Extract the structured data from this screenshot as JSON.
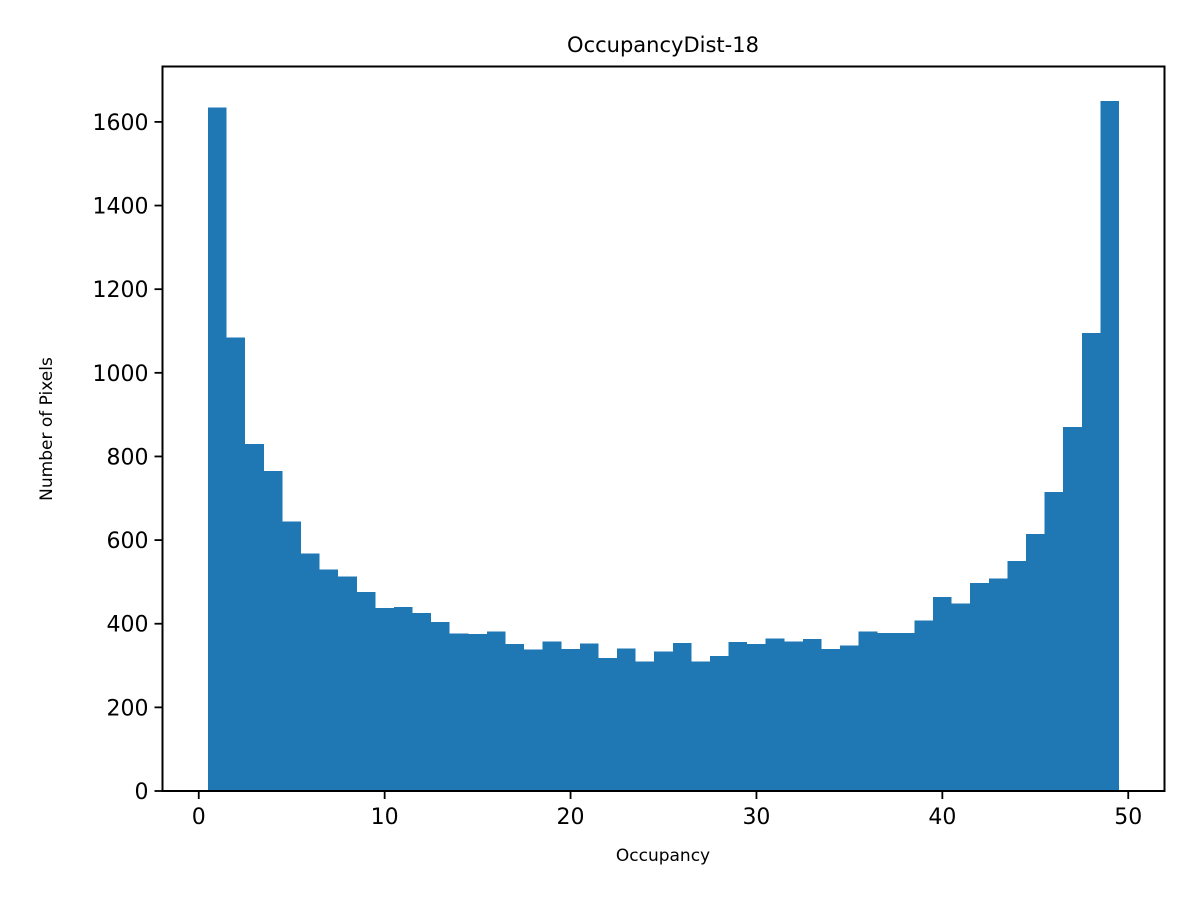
{
  "figure": {
    "background": "#ffffff",
    "text_color": "#000000"
  },
  "chart_data": {
    "type": "bar",
    "subtype": "histogram",
    "title": "OccupancyDist-18",
    "xlabel": "Occupancy",
    "ylabel": "Number of Pixels",
    "bin_start": 0.5,
    "bin_width": 1,
    "bin_centers": [
      1,
      2,
      3,
      4,
      5,
      6,
      7,
      8,
      9,
      10,
      11,
      12,
      13,
      14,
      15,
      16,
      17,
      18,
      19,
      20,
      21,
      22,
      23,
      24,
      25,
      26,
      27,
      28,
      29,
      30,
      31,
      32,
      33,
      34,
      35,
      36,
      37,
      38,
      39,
      40,
      41,
      42,
      43,
      44,
      45,
      46,
      47,
      48,
      49
    ],
    "values": [
      1635,
      1085,
      830,
      765,
      645,
      568,
      530,
      513,
      476,
      438,
      440,
      426,
      404,
      377,
      376,
      382,
      351,
      338,
      357,
      339,
      353,
      318,
      341,
      310,
      334,
      354,
      310,
      323,
      356,
      351,
      365,
      358,
      364,
      340,
      348,
      382,
      378,
      378,
      408,
      464,
      448,
      497,
      508,
      550,
      615,
      715,
      870,
      1095,
      1650
    ],
    "xlim": [
      -1.95,
      51.95
    ],
    "ylim": [
      0,
      1732.5
    ],
    "xticks": [
      0,
      10,
      20,
      30,
      40,
      50
    ],
    "yticks": [
      0,
      200,
      400,
      600,
      800,
      1000,
      1200,
      1400,
      1600
    ],
    "bar_color": "#1f77b4",
    "spine_color": "#000000",
    "grid": false,
    "legend_position": "none"
  }
}
